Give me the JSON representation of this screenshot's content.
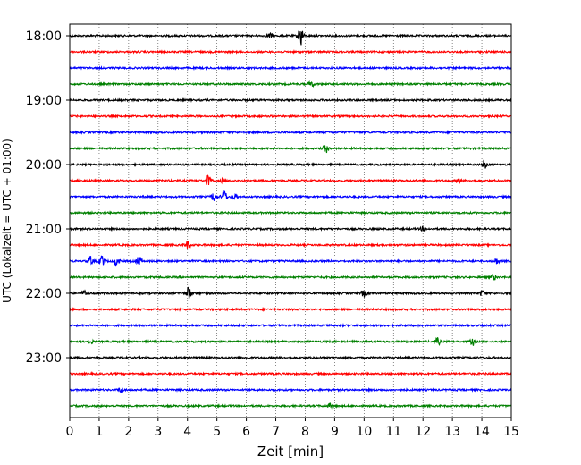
{
  "chart_data": {
    "type": "line",
    "title": "",
    "xlabel": "Zeit  [min]",
    "ylabel": "UTC (Lokalzeit = UTC + 01:00)",
    "xlim": [
      0,
      15
    ],
    "x_ticks": [
      "0",
      "1",
      "2",
      "3",
      "4",
      "5",
      "6",
      "7",
      "8",
      "9",
      "10",
      "11",
      "12",
      "13",
      "14",
      "15"
    ],
    "y_ticks": [
      "18:00",
      "19:00",
      "20:00",
      "21:00",
      "22:00",
      "23:00"
    ],
    "grid": "vertical dotted",
    "row_colors": [
      "#000000",
      "#ff0000",
      "#0000ff",
      "#008000"
    ],
    "rows": [
      {
        "start": "18:00",
        "events": [
          {
            "x": 7.85,
            "amp": 12
          },
          {
            "x": 6.8,
            "amp": 2.5
          }
        ]
      },
      {
        "start": "18:15",
        "events": []
      },
      {
        "start": "18:30",
        "events": []
      },
      {
        "start": "18:45",
        "events": [
          {
            "x": 8.2,
            "amp": 3
          }
        ]
      },
      {
        "start": "19:00",
        "events": []
      },
      {
        "start": "19:15",
        "events": []
      },
      {
        "start": "19:30",
        "events": []
      },
      {
        "start": "19:45",
        "events": [
          {
            "x": 8.7,
            "amp": 5
          }
        ]
      },
      {
        "start": "20:00",
        "events": [
          {
            "x": 14.1,
            "amp": 4
          }
        ]
      },
      {
        "start": "20:15",
        "events": [
          {
            "x": 4.7,
            "amp": 6
          },
          {
            "x": 5.2,
            "amp": 2
          },
          {
            "x": 13.2,
            "amp": 2
          }
        ]
      },
      {
        "start": "20:30",
        "events": [
          {
            "x": 4.9,
            "amp": 5
          },
          {
            "x": 5.25,
            "amp": 7
          },
          {
            "x": 5.6,
            "amp": 3
          }
        ]
      },
      {
        "start": "20:45",
        "events": []
      },
      {
        "start": "21:00",
        "events": [
          {
            "x": 12.0,
            "amp": 2
          }
        ]
      },
      {
        "start": "21:15",
        "events": [
          {
            "x": 4.0,
            "amp": 4
          }
        ]
      },
      {
        "start": "21:30",
        "events": [
          {
            "x": 0.7,
            "amp": 5
          },
          {
            "x": 1.1,
            "amp": 6
          },
          {
            "x": 1.6,
            "amp": 5
          },
          {
            "x": 2.35,
            "amp": 5
          },
          {
            "x": 14.5,
            "amp": 3
          }
        ]
      },
      {
        "start": "21:45",
        "events": [
          {
            "x": 14.4,
            "amp": 3
          }
        ]
      },
      {
        "start": "22:00",
        "events": [
          {
            "x": 0.5,
            "amp": 3
          },
          {
            "x": 4.05,
            "amp": 8
          },
          {
            "x": 10.0,
            "amp": 4
          },
          {
            "x": 14.0,
            "amp": 3
          }
        ]
      },
      {
        "start": "22:15",
        "events": []
      },
      {
        "start": "22:30",
        "events": []
      },
      {
        "start": "22:45",
        "events": [
          {
            "x": 0.7,
            "amp": 2
          },
          {
            "x": 12.5,
            "amp": 4
          },
          {
            "x": 13.7,
            "amp": 4
          }
        ]
      },
      {
        "start": "23:00",
        "events": []
      },
      {
        "start": "23:15",
        "events": []
      },
      {
        "start": "23:30",
        "events": [
          {
            "x": 1.75,
            "amp": 3
          }
        ]
      },
      {
        "start": "23:45",
        "events": [
          {
            "x": 8.85,
            "amp": 2
          }
        ]
      }
    ]
  }
}
